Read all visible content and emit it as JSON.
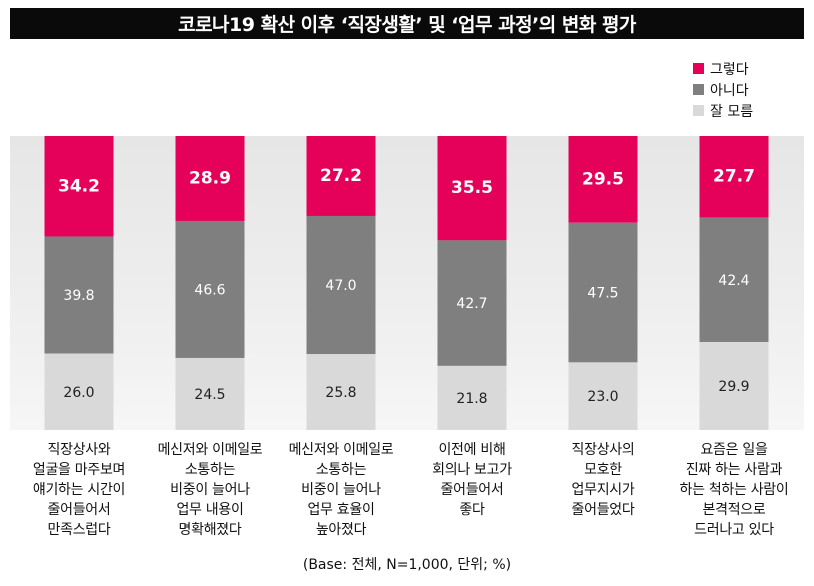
{
  "header": {
    "title": "코로나19 확산 이후 ‘직장생활’ 및 ‘업무 과정’의 변화 평가"
  },
  "footnote": "(Base: 전체, N=1,000, 단위; %)",
  "chart_data": {
    "type": "bar",
    "stacked": true,
    "title": "코로나19 확산 이후 ‘직장생활’ 및 ‘업무 과정’의 변화 평가",
    "categories": [
      "직장상사와\n얼굴을 마주보며\n얘기하는 시간이\n줄어들어서\n만족스럽다",
      "메신저와 이메일로\n소통하는\n비중이 늘어나\n업무 내용이\n명확해졌다",
      "메신저와 이메일로\n소통하는\n비중이 늘어나\n업무 효율이\n높아졌다",
      "이전에 비해\n회의나 보고가\n줄어들어서\n좋다",
      "직장상사의\n모호한\n업무지시가\n줄어들었다",
      "요즘은 일을\n진짜 하는 사람과\n하는 척하는 사람이\n본격적으로\n드러나고 있다"
    ],
    "series": [
      {
        "name": "그렇다",
        "color": "#e5005a",
        "label_color": "#ffffff",
        "values": [
          34.2,
          28.9,
          27.2,
          35.5,
          29.5,
          27.7
        ]
      },
      {
        "name": "아니다",
        "color": "#7f7f7f",
        "label_color": "#ffffff",
        "values": [
          39.8,
          46.6,
          47.0,
          42.7,
          47.5,
          42.4
        ]
      },
      {
        "name": "잘 모름",
        "color": "#d9d9d9",
        "label_color": "#222222",
        "values": [
          26.0,
          24.5,
          25.8,
          21.8,
          23.0,
          29.9
        ]
      }
    ],
    "ylim": [
      0,
      100
    ],
    "legend": "top-right",
    "xlabel": "",
    "ylabel": ""
  }
}
